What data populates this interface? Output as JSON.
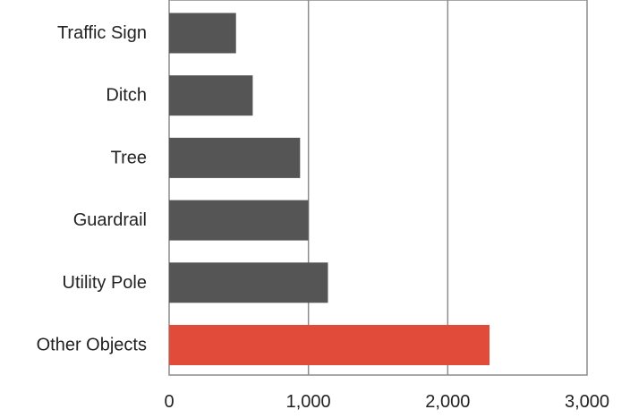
{
  "chart_data": {
    "type": "bar",
    "orientation": "horizontal",
    "categories": [
      "Traffic Sign",
      "Ditch",
      "Tree",
      "Guardrail",
      "Utility Pole",
      "Other Objects"
    ],
    "values": [
      480,
      600,
      940,
      1000,
      1140,
      2300
    ],
    "xticks": [
      "0",
      "1,000",
      "2,000",
      "3,000"
    ],
    "xlim": [
      0,
      3000
    ],
    "grid": true,
    "legend": "none",
    "colors": {
      "default": "#555555",
      "highlight": "#e04b3a",
      "grid": "#8c8c8c",
      "axis": "#8c8c8c"
    },
    "highlight_index": 5
  }
}
